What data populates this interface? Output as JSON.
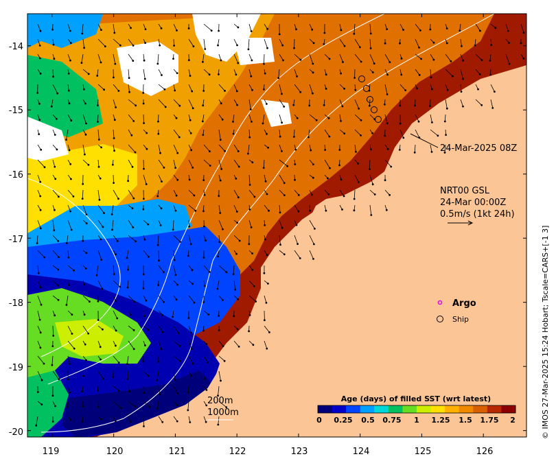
{
  "map": {
    "region": "Western Australia, North-West Shelf (Broome / Dampier Peninsula)",
    "lon_range": [
      118.6,
      126.7
    ],
    "lat_range": [
      -20.1,
      -13.5
    ],
    "x_ticks": [
      "119",
      "120",
      "121",
      "122",
      "123",
      "124",
      "125",
      "126"
    ],
    "y_ticks": [
      "-14",
      "-15",
      "-16",
      "-17",
      "-18",
      "-19",
      "-20"
    ],
    "x_tick_values": [
      119,
      120,
      121,
      122,
      123,
      124,
      125,
      126
    ],
    "y_tick_values": [
      -14,
      -15,
      -16,
      -17,
      -18,
      -19,
      -20
    ],
    "land_color": "#fbc595"
  },
  "annotations": {
    "timestamp": "24-Mar-2025 08Z",
    "product_line1": "NRT00 GSL",
    "product_line2": "24-Mar 00:00Z",
    "product_line3": "0.5m/s (1kt 24h)",
    "contour_200": "200m",
    "contour_1000": "1000m"
  },
  "legend": {
    "argo_label": "Argo",
    "argo_color": "#e000e0",
    "ship_label": "Ship"
  },
  "colorbar": {
    "title": "Age (days) of filled SST (wrt latest)",
    "ticks": [
      "0",
      "0.25",
      "0.5",
      "0.75",
      "1",
      "1.25",
      "1.5",
      "1.75",
      "2"
    ],
    "colors": [
      "#00007a",
      "#0000c8",
      "#0044ff",
      "#00a0ff",
      "#00d8d8",
      "#00c060",
      "#66dd22",
      "#ccee00",
      "#ffe000",
      "#ffb000",
      "#f08800",
      "#d86000",
      "#b82800",
      "#8b0000"
    ]
  },
  "copyright": "© IMOS 27-Mar-2025 15:24 Hobart; Tscale=CARS+[-1 3]"
}
